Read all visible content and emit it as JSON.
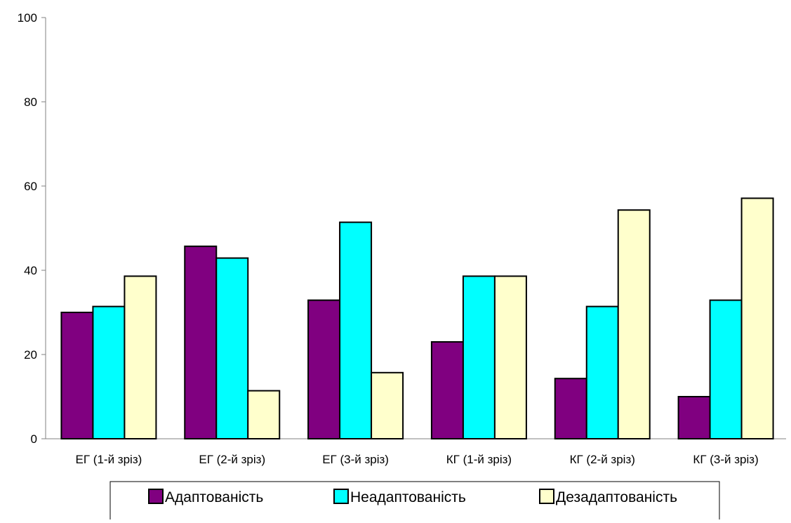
{
  "chart_data": {
    "type": "bar",
    "categories": [
      "ЕГ (1-й зріз)",
      "ЕГ (2-й зріз)",
      "ЕГ (3-й зріз)",
      "КГ (1-й зріз)",
      "КГ (2-й зріз)",
      "КГ (3-й зріз)"
    ],
    "series": [
      {
        "name": "Адаптованість",
        "color": "#800080",
        "values": [
          30,
          45.7,
          32.9,
          23,
          14.3,
          10
        ]
      },
      {
        "name": "Неадаптованість",
        "color": "#00FFFF",
        "values": [
          31.4,
          42.9,
          51.4,
          38.6,
          31.4,
          32.9
        ]
      },
      {
        "name": "Дезадаптованість",
        "color": "#FFFFCC",
        "values": [
          38.6,
          11.4,
          15.7,
          38.6,
          54.3,
          57.1
        ]
      }
    ],
    "y_ticks": [
      "0",
      "20",
      "40",
      "60",
      "80",
      "100"
    ],
    "ylim": [
      0,
      100
    ],
    "title": "",
    "xlabel": "",
    "ylabel": "",
    "grid": false,
    "legend_position": "bottom"
  }
}
